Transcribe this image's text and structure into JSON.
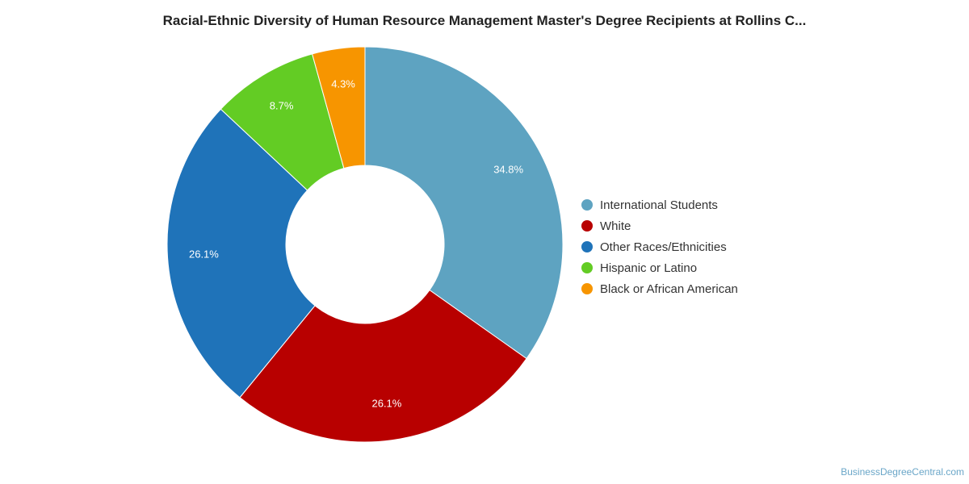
{
  "title": "Racial-Ethnic Diversity of Human Resource Management Master's Degree Recipients at Rollins C...",
  "credit": "BusinessDegreeCentral.com",
  "chart_data": {
    "type": "pie",
    "style": "donut",
    "title": "Racial-Ethnic Diversity of Human Resource Management Master's Degree Recipients at Rollins C...",
    "legend_position": "right",
    "slices": [
      {
        "name": "International Students",
        "value": 34.8,
        "label": "34.8%",
        "color": "#5ea3c1"
      },
      {
        "name": "White",
        "value": 26.1,
        "label": "26.1%",
        "color": "#b80000"
      },
      {
        "name": "Other Races/Ethnicities",
        "value": 26.1,
        "label": "26.1%",
        "color": "#1f73b9"
      },
      {
        "name": "Hispanic or Latino",
        "value": 8.7,
        "label": "8.7%",
        "color": "#63cc24"
      },
      {
        "name": "Black or African American",
        "value": 4.3,
        "label": "4.3%",
        "color": "#f79500"
      }
    ]
  }
}
